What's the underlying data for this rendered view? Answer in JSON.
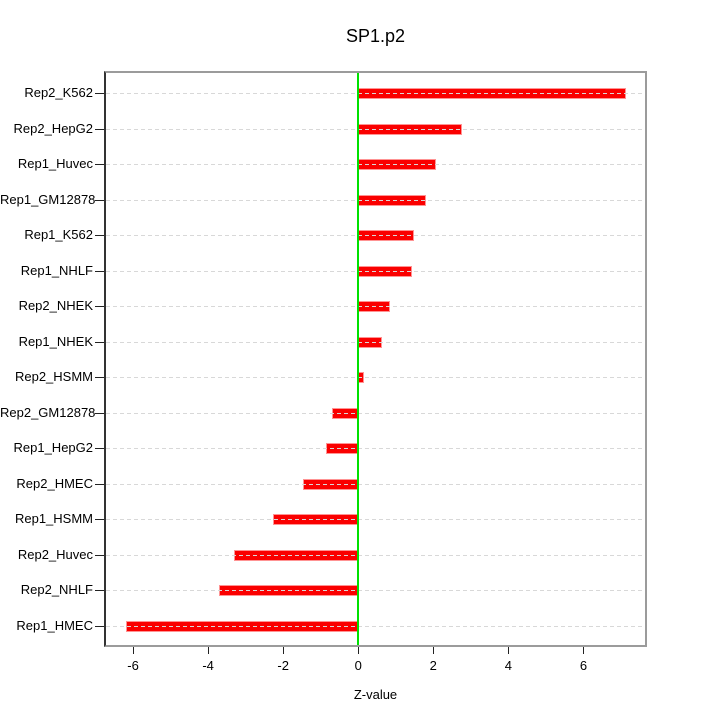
{
  "chart_data": {
    "type": "bar",
    "orientation": "horizontal",
    "title": "SP1.p2",
    "xlabel": "Z-value",
    "ylabel": "",
    "categories": [
      "Rep2_K562",
      "Rep2_HepG2",
      "Rep1_Huvec",
      "Rep1_GM12878",
      "Rep1_K562",
      "Rep1_NHLF",
      "Rep2_NHEK",
      "Rep1_NHEK",
      "Rep2_HSMM",
      "Rep2_GM12878",
      "Rep1_HepG2",
      "Rep2_HMEC",
      "Rep1_HSMM",
      "Rep2_Huvec",
      "Rep2_NHLF",
      "Rep1_HMEC"
    ],
    "values": [
      7.13,
      2.76,
      2.06,
      1.81,
      1.48,
      1.43,
      0.85,
      0.63,
      0.15,
      -0.69,
      -0.86,
      -1.47,
      -2.28,
      -3.31,
      -3.72,
      -6.2
    ],
    "xticks": [
      -6,
      -4,
      -2,
      0,
      2,
      4,
      6
    ],
    "xlim": [
      -6.72,
      7.64
    ],
    "grid": "dashed horizontal line per category, drawn over bars",
    "legend": "none",
    "colors": {
      "bar": "#fa0000",
      "bar_edge": "#ff9393",
      "zero_line": "#00e100",
      "gridline": "#d8d8d8",
      "plot_border": "#9b9b9b",
      "axis_text": "#000000"
    }
  }
}
